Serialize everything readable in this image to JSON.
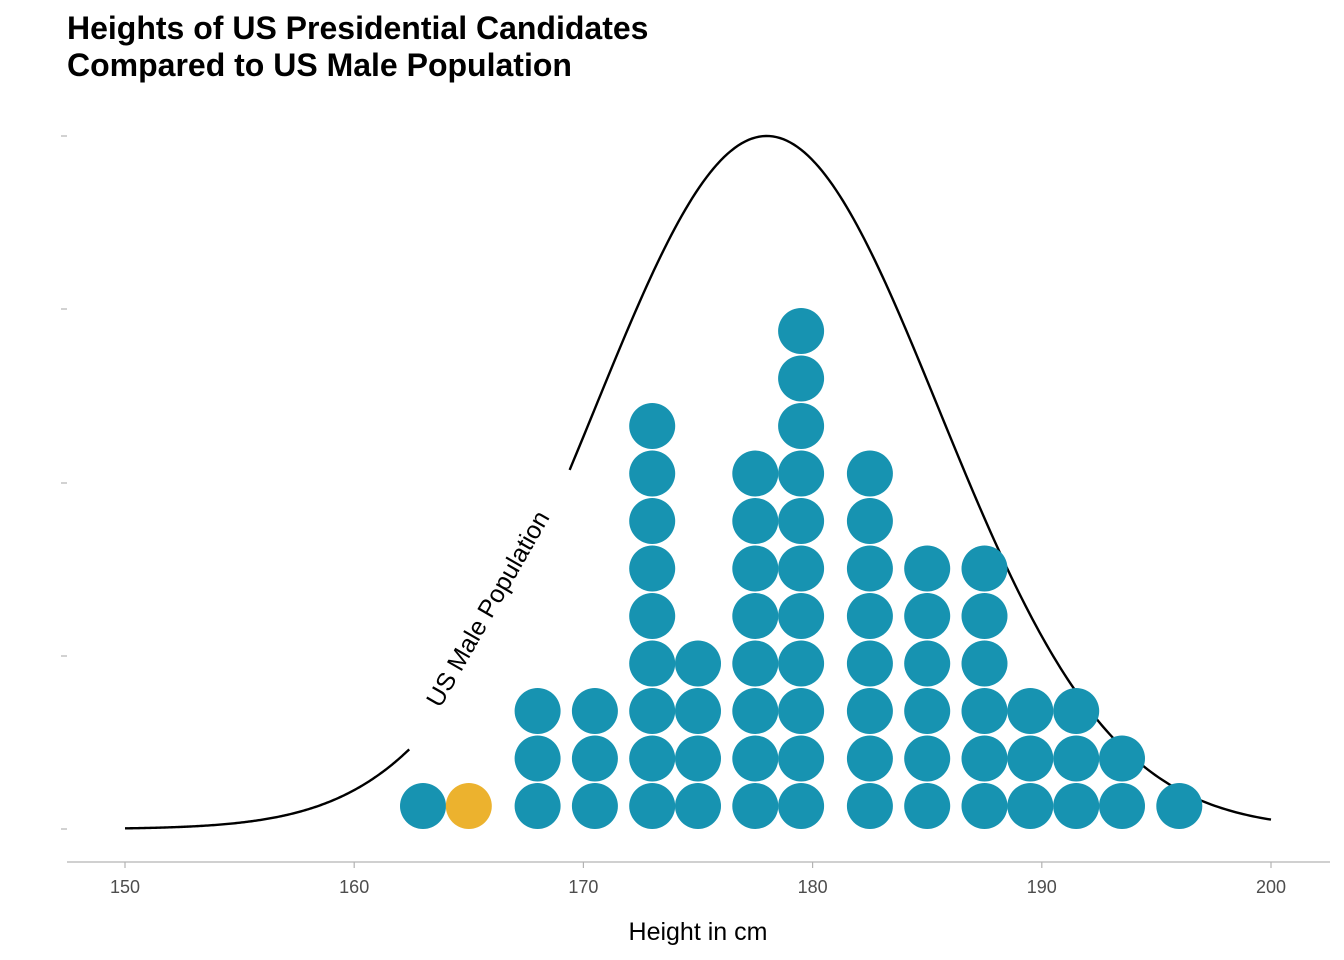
{
  "chart_data": {
    "type": "dotplot",
    "title": [
      "Heights of US Presidential Candidates",
      "Compared to US Male Population"
    ],
    "xlabel": "Height in cm",
    "ylabel": "",
    "xlim": [
      147.5,
      202.5
    ],
    "xticks": [
      150,
      160,
      170,
      180,
      190,
      200
    ],
    "grid": false,
    "curve": {
      "label": "US Male Population",
      "distribution": "normal",
      "mean": 178,
      "sd": 7.5,
      "x_range": [
        150,
        200
      ],
      "color": "#000000"
    },
    "dot_color": "#1793b1",
    "highlight_color": "#ecb22e",
    "columns": [
      {
        "x": 163,
        "count": 1
      },
      {
        "x": 165,
        "count": 1,
        "highlight": true
      },
      {
        "x": 168,
        "count": 3
      },
      {
        "x": 170.5,
        "count": 3
      },
      {
        "x": 173,
        "count": 9
      },
      {
        "x": 175,
        "count": 4
      },
      {
        "x": 177.5,
        "count": 8
      },
      {
        "x": 179.5,
        "count": 11
      },
      {
        "x": 182.5,
        "count": 8
      },
      {
        "x": 185,
        "count": 6
      },
      {
        "x": 187.5,
        "count": 6
      },
      {
        "x": 189.5,
        "count": 3
      },
      {
        "x": 191.5,
        "count": 3
      },
      {
        "x": 193.5,
        "count": 2
      },
      {
        "x": 196,
        "count": 1
      }
    ]
  }
}
